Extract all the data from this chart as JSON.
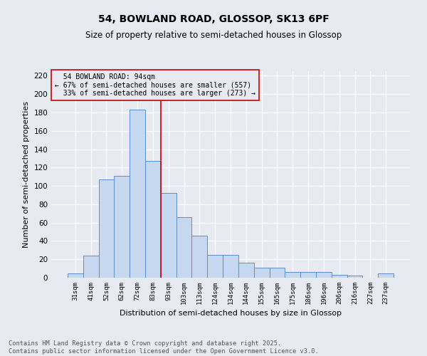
{
  "title_line1": "54, BOWLAND ROAD, GLOSSOP, SK13 6PF",
  "title_line2": "Size of property relative to semi-detached houses in Glossop",
  "xlabel": "Distribution of semi-detached houses by size in Glossop",
  "ylabel": "Number of semi-detached properties",
  "categories": [
    "31sqm",
    "41sqm",
    "52sqm",
    "62sqm",
    "72sqm",
    "83sqm",
    "93sqm",
    "103sqm",
    "113sqm",
    "124sqm",
    "134sqm",
    "144sqm",
    "155sqm",
    "165sqm",
    "175sqm",
    "186sqm",
    "196sqm",
    "206sqm",
    "216sqm",
    "227sqm",
    "237sqm"
  ],
  "values": [
    5,
    24,
    107,
    111,
    183,
    127,
    92,
    66,
    46,
    25,
    25,
    16,
    11,
    11,
    6,
    6,
    6,
    3,
    2,
    0,
    5
  ],
  "bar_color": "#c5d8f0",
  "bar_edge_color": "#5b8fc9",
  "ylim": [
    0,
    225
  ],
  "yticks": [
    0,
    20,
    40,
    60,
    80,
    100,
    120,
    140,
    160,
    180,
    200,
    220
  ],
  "property_label": "54 BOWLAND ROAD: 94sqm",
  "pct_smaller": 67,
  "count_smaller": 557,
  "pct_larger": 33,
  "count_larger": 273,
  "vline_bin_index": 6,
  "vline_color": "#cc0000",
  "annotation_box_color": "#cc0000",
  "background_color": "#e8eaf2",
  "grid_color": "#ffffff",
  "footer_line1": "Contains HM Land Registry data © Crown copyright and database right 2025.",
  "footer_line2": "Contains public sector information licensed under the Open Government Licence v3.0."
}
